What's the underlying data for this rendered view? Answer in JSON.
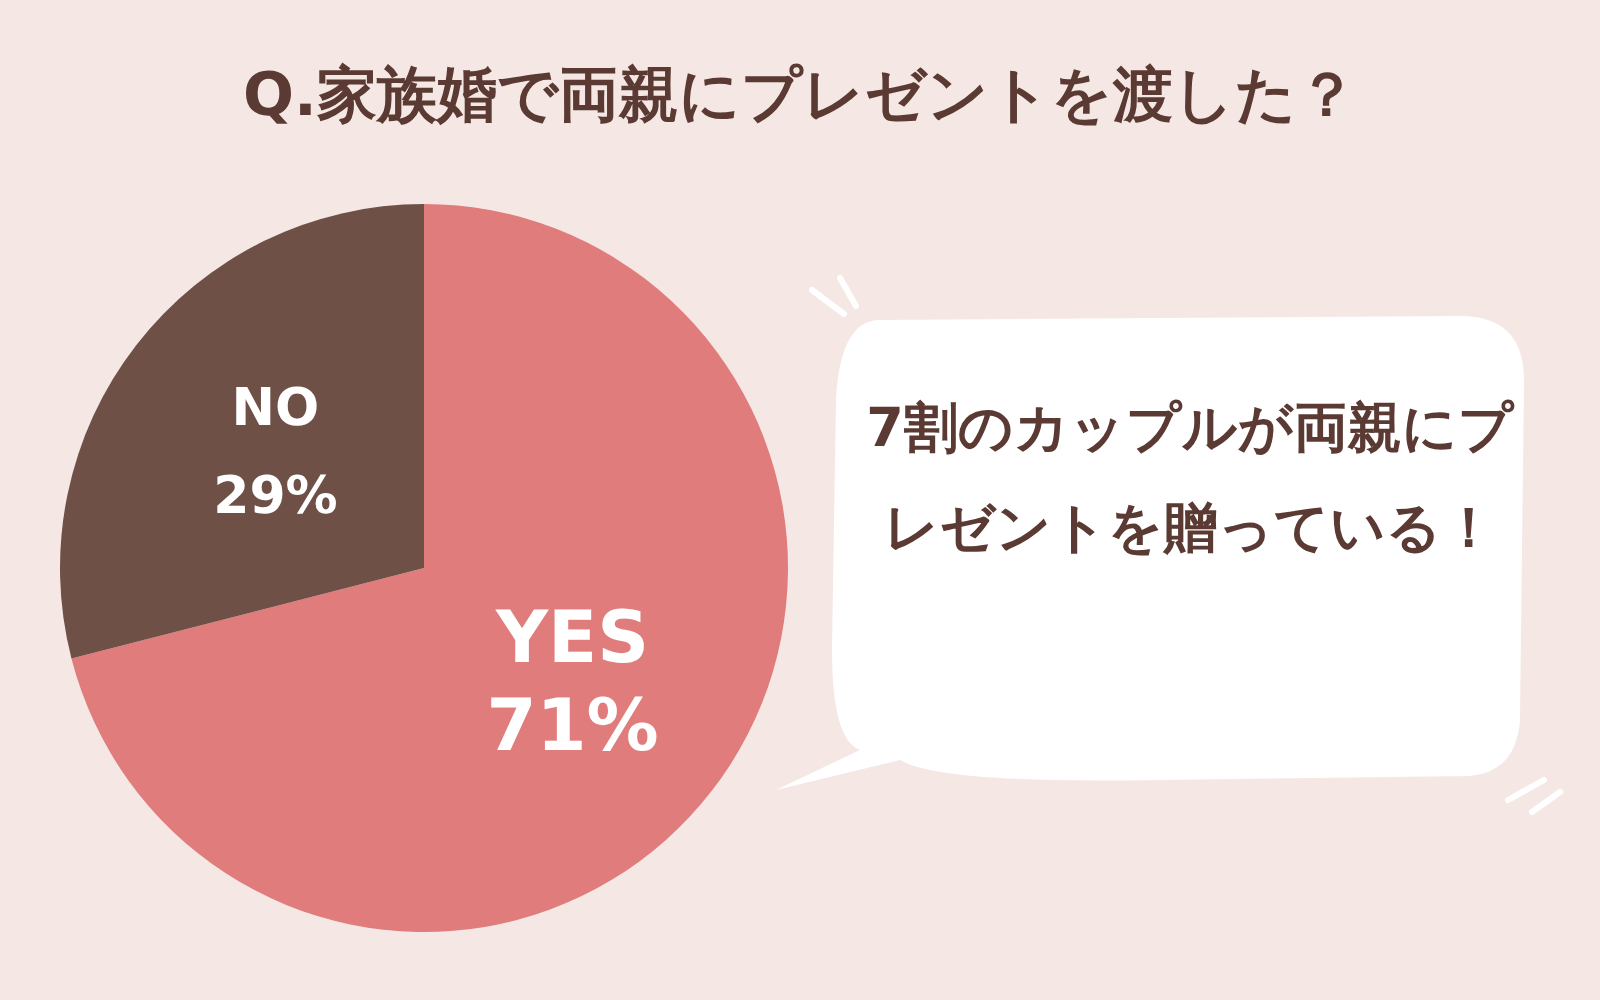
{
  "chart_data": {
    "type": "pie",
    "title": "Q.家族婚で両親にプレゼントを渡した？",
    "categories": [
      "YES",
      "NO"
    ],
    "values": [
      71,
      29
    ],
    "value_labels": [
      "71%",
      "29%"
    ],
    "colors": [
      "#e07c7b",
      "#6e5047"
    ],
    "annotations": [
      "7割のカップルが両親にプレゼントを贈っている！"
    ],
    "legend": false
  }
}
